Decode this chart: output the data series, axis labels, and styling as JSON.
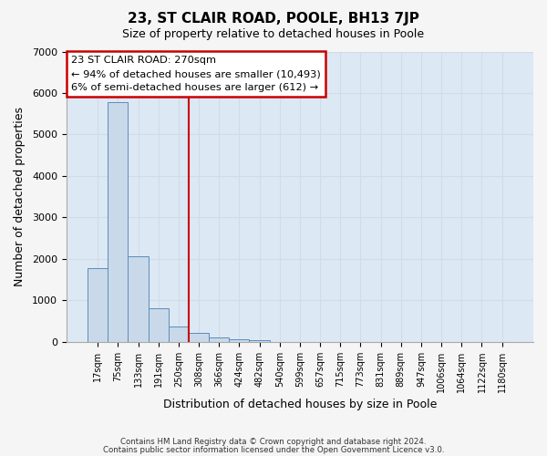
{
  "title": "23, ST CLAIR ROAD, POOLE, BH13 7JP",
  "subtitle": "Size of property relative to detached houses in Poole",
  "xlabel": "Distribution of detached houses by size in Poole",
  "ylabel": "Number of detached properties",
  "bar_values": [
    1780,
    5780,
    2060,
    820,
    370,
    220,
    110,
    55,
    30,
    0,
    0,
    0,
    0,
    0,
    0,
    0,
    0,
    0,
    0,
    0,
    0
  ],
  "bar_labels": [
    "17sqm",
    "75sqm",
    "133sqm",
    "191sqm",
    "250sqm",
    "308sqm",
    "366sqm",
    "424sqm",
    "482sqm",
    "540sqm",
    "599sqm",
    "657sqm",
    "715sqm",
    "773sqm",
    "831sqm",
    "889sqm",
    "947sqm",
    "1006sqm",
    "1064sqm",
    "1122sqm",
    "1180sqm"
  ],
  "bar_color": "#c9d9ea",
  "bar_edge_color": "#5b8db8",
  "vline_x": 4.5,
  "vline_color": "#cc0000",
  "annotation_text": "23 ST CLAIR ROAD: 270sqm\n← 94% of detached houses are smaller (10,493)\n6% of semi-detached houses are larger (612) →",
  "annotation_box_color": "#ffffff",
  "annotation_box_edge": "#cc0000",
  "ylim": [
    0,
    7000
  ],
  "yticks": [
    0,
    1000,
    2000,
    3000,
    4000,
    5000,
    6000,
    7000
  ],
  "grid_color": "#d0dce8",
  "background_color": "#dce8f4",
  "fig_background": "#f5f5f5",
  "footer_line1": "Contains HM Land Registry data © Crown copyright and database right 2024.",
  "footer_line2": "Contains public sector information licensed under the Open Government Licence v3.0."
}
